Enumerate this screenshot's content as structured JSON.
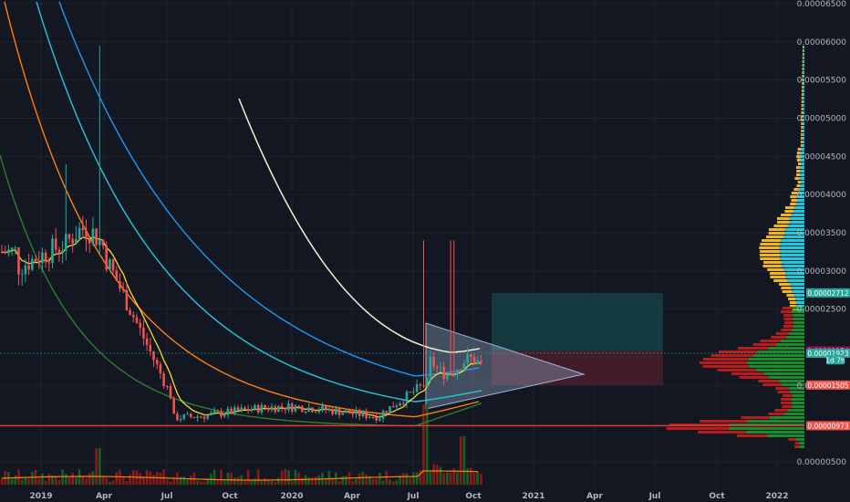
{
  "chart_data": {
    "type": "candlestick",
    "y_axis": {
      "ticks": [
        "0.00006500",
        "0.00006000",
        "0.00005500",
        "0.00005000",
        "0.00004500",
        "0.00004000",
        "0.00003500",
        "0.00003000",
        "0.00002500",
        "0.00001500",
        "0.00000500"
      ],
      "range": [
        3.4e-06,
        6.56e-05
      ]
    },
    "x_axis": {
      "ticks": [
        "2019",
        "Apr",
        "Jul",
        "Oct",
        "2020",
        "Apr",
        "Jul",
        "Oct",
        "2021",
        "Apr",
        "Jul",
        "Oct",
        "2022"
      ]
    },
    "price_badges": [
      {
        "label": "0.00002712",
        "value": 2.712e-05,
        "color": "#26a69a"
      },
      {
        "label": "0.00001954",
        "value": 1.954e-05,
        "color": "#880e4f"
      },
      {
        "label": "0.00001923",
        "value": 1.923e-05,
        "color": "#26a69a"
      },
      {
        "label": "1d 7h",
        "value": 1.835e-05,
        "color": "#26a69a"
      },
      {
        "label": "0.00001505",
        "value": 1.505e-05,
        "color": "#ef5350"
      },
      {
        "label": "0.00000973",
        "value": 9.73e-06,
        "color": "#ef5350"
      }
    ],
    "horizontal_line": 9.73e-06,
    "last_price": 1.923e-05,
    "colors": {
      "background": "#131722",
      "up": "#26a69a",
      "down": "#ef5350",
      "profile_up": "#26c6da",
      "profile_down": "#f0b429",
      "ma_white": "#f5f0d0",
      "ma_blue": "#2196f3",
      "ma_cyan": "#26c6da",
      "ma_orange": "#ff7f0e",
      "ma_green": "#2e7d32",
      "ma_yellow": "#fdd835"
    }
  }
}
